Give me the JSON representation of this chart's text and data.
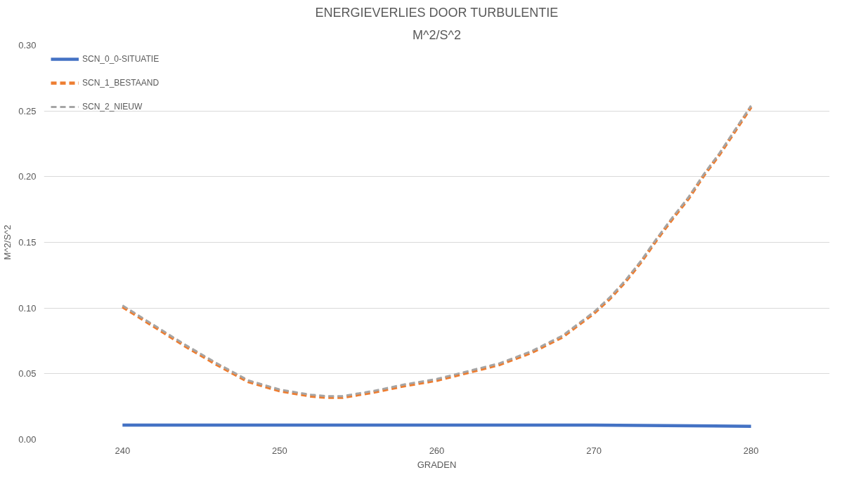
{
  "chart_data": {
    "type": "line",
    "title": "ENERGIEVERLIES DOOR TURBULENTIE",
    "subtitle": "M^2/S^2",
    "xlabel": "GRADEN",
    "ylabel": "M^2/S^2",
    "x": [
      240,
      242,
      244,
      246,
      248,
      250,
      252,
      253,
      254,
      256,
      258,
      260,
      262,
      264,
      266,
      268,
      270,
      271,
      272,
      273,
      274,
      275,
      276,
      277,
      278,
      279,
      280
    ],
    "series": [
      {
        "name": "SCN_0_0-SITUATIE",
        "color": "#4472c4",
        "line_style": "solid",
        "x": [
          240,
          250,
          260,
          270,
          280
        ],
        "values": [
          0.011,
          0.011,
          0.011,
          0.011,
          0.01
        ]
      },
      {
        "name": "SCN_1_BESTAAND",
        "color": "#ed7d31",
        "line_style": "dashed",
        "values": [
          0.101,
          0.086,
          0.071,
          0.057,
          0.044,
          0.037,
          0.033,
          0.032,
          0.032,
          0.036,
          0.041,
          0.045,
          0.051,
          0.057,
          0.066,
          0.078,
          0.096,
          0.107,
          0.12,
          0.135,
          0.152,
          0.168,
          0.183,
          0.201,
          0.217,
          0.235,
          0.253
        ]
      },
      {
        "name": "SCN_2_NIEUW",
        "color": "#a5a5a5",
        "line_style": "dashed",
        "values": [
          0.102,
          0.087,
          0.072,
          0.058,
          0.045,
          0.038,
          0.034,
          0.033,
          0.033,
          0.037,
          0.042,
          0.046,
          0.052,
          0.058,
          0.067,
          0.079,
          0.097,
          0.108,
          0.121,
          0.136,
          0.153,
          0.169,
          0.184,
          0.202,
          0.218,
          0.236,
          0.254
        ]
      }
    ],
    "xlim": [
      235,
      285
    ],
    "xticks": [
      240,
      250,
      260,
      270,
      280
    ],
    "ylim": [
      0,
      0.3
    ],
    "yticks": [
      {
        "value": 0,
        "label": "0.00"
      },
      {
        "value": 0.05,
        "label": "0.05"
      },
      {
        "value": 0.1,
        "label": "0.10"
      },
      {
        "value": 0.15,
        "label": "0.15"
      },
      {
        "value": 0.2,
        "label": "0.20"
      },
      {
        "value": 0.25,
        "label": "0.25"
      },
      {
        "value": 0.3,
        "label": "0.30"
      }
    ],
    "grid": "y",
    "legend": "top left"
  }
}
